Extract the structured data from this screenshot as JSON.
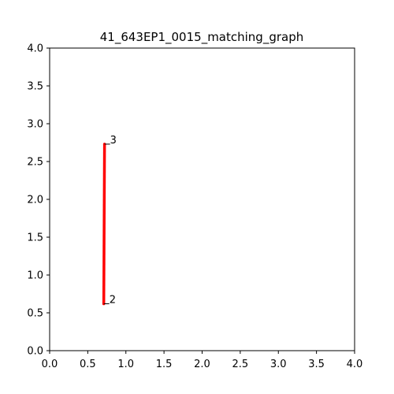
{
  "chart_data": {
    "type": "line",
    "title": "41_643EP1_0015_matching_graph",
    "xlabel": "",
    "ylabel": "",
    "xlim": [
      0.0,
      4.0
    ],
    "ylim": [
      0.0,
      4.0
    ],
    "x_ticks": [
      "0.0",
      "0.5",
      "1.0",
      "1.5",
      "2.0",
      "2.5",
      "3.0",
      "3.5",
      "4.0"
    ],
    "y_ticks": [
      "0.0",
      "0.5",
      "1.0",
      "1.5",
      "2.0",
      "2.5",
      "3.0",
      "3.5",
      "4.0"
    ],
    "grid": false,
    "series": [
      {
        "color": "#ff0000",
        "points": [
          {
            "x": 0.71,
            "y": 0.62,
            "label": "2"
          },
          {
            "x": 0.72,
            "y": 2.73,
            "label": "3"
          }
        ]
      }
    ]
  }
}
